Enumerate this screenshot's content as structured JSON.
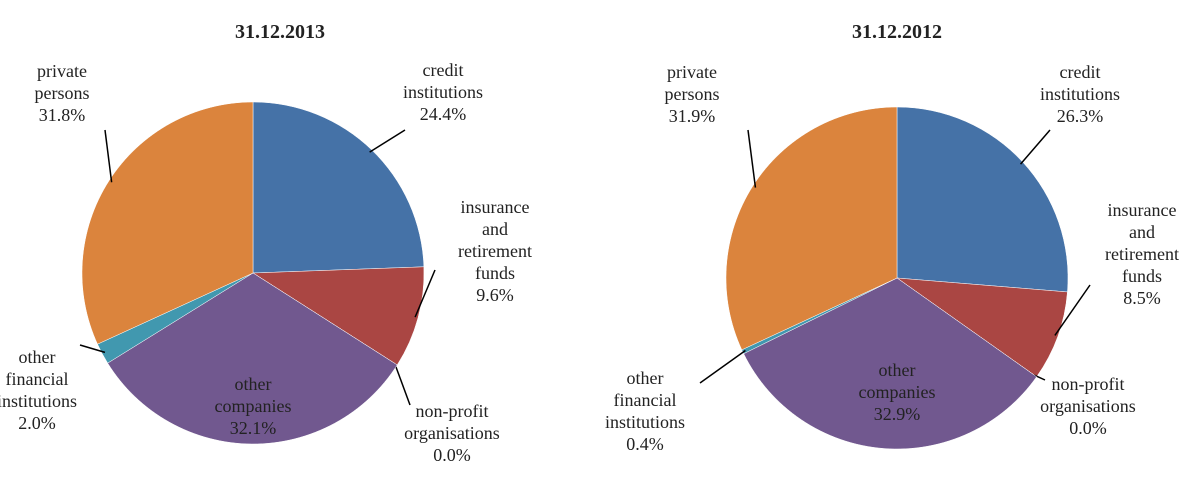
{
  "chart_data": [
    {
      "type": "pie",
      "title": "31.12.2013",
      "categories": [
        "credit institutions",
        "insurance and retirement funds",
        "non-profit organisations",
        "other companies",
        "other financial institutions",
        "private persons"
      ],
      "values": [
        24.4,
        9.6,
        0.0,
        32.1,
        2.0,
        31.8
      ],
      "value_labels": [
        "24.4%",
        "9.6%",
        "0.0%",
        "32.1%",
        "2.0%",
        "31.8%"
      ],
      "colors": [
        "#4572a7",
        "#aa4643",
        "#89a54e",
        "#71588f",
        "#4198af",
        "#db843d"
      ]
    },
    {
      "type": "pie",
      "title": "31.12.2012",
      "categories": [
        "credit institutions",
        "insurance and retirement funds",
        "non-profit organisations",
        "other companies",
        "other financial institutions",
        "private persons"
      ],
      "values": [
        26.3,
        8.5,
        0.0,
        32.9,
        0.4,
        31.9
      ],
      "value_labels": [
        "26.3%",
        "8.5%",
        "0.0%",
        "32.9%",
        "0.4%",
        "31.9%"
      ],
      "colors": [
        "#4572a7",
        "#aa4643",
        "#89a54e",
        "#71588f",
        "#4198af",
        "#db843d"
      ]
    }
  ]
}
